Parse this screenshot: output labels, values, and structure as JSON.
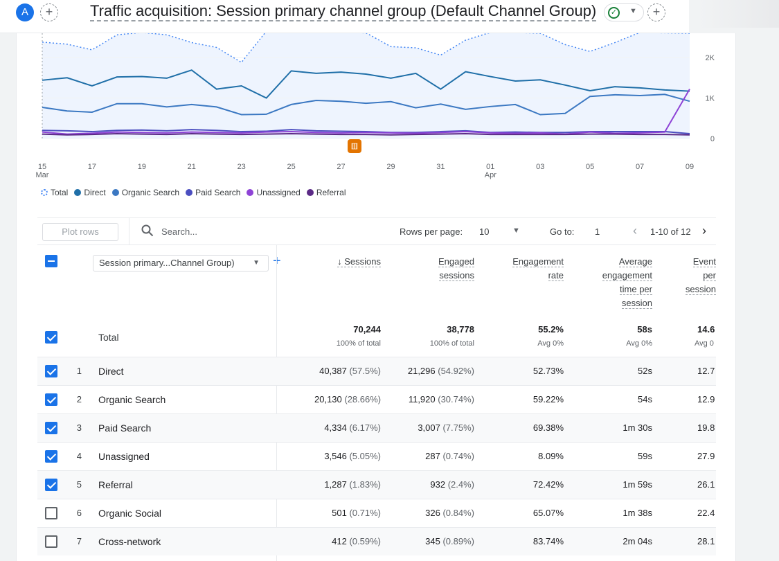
{
  "header": {
    "avatar_letter": "A",
    "title": "Traffic acquisition: Session primary channel group (Default Channel Group)"
  },
  "chart_data": {
    "type": "line",
    "x": [
      "15 Mar",
      "16",
      "17",
      "18",
      "19",
      "20",
      "21",
      "22",
      "23",
      "24",
      "25",
      "26",
      "27",
      "28",
      "29",
      "30",
      "31",
      "01 Apr",
      "02",
      "03",
      "04",
      "05",
      "06",
      "07",
      "08",
      "09",
      "10"
    ],
    "x_tick_labels": [
      {
        "label": "15",
        "sub": "Mar"
      },
      {
        "label": "17"
      },
      {
        "label": "19"
      },
      {
        "label": "21"
      },
      {
        "label": "23"
      },
      {
        "label": "25"
      },
      {
        "label": "27"
      },
      {
        "label": "29"
      },
      {
        "label": "31"
      },
      {
        "label": "01",
        "sub": "Apr"
      },
      {
        "label": "03"
      },
      {
        "label": "05"
      },
      {
        "label": "07"
      },
      {
        "label": "09"
      }
    ],
    "y_ticks": [
      "2K",
      "1K",
      "0"
    ],
    "ylim": [
      0,
      2600
    ],
    "series": [
      {
        "name": "Total",
        "color": "#4285f4",
        "dashed": true,
        "values": [
          2380,
          2330,
          2190,
          2560,
          2620,
          2560,
          2370,
          2250,
          1880,
          2650,
          2620,
          2620,
          2620,
          2610,
          2270,
          2240,
          2060,
          2430,
          2620,
          2620,
          2600,
          2320,
          2150,
          2370,
          2620,
          2610,
          2600
        ]
      },
      {
        "name": "Direct",
        "color": "#1f6fa8",
        "values": [
          1440,
          1500,
          1300,
          1520,
          1530,
          1490,
          1690,
          1220,
          1300,
          1000,
          1670,
          1610,
          1640,
          1590,
          1490,
          1610,
          1220,
          1650,
          1530,
          1420,
          1450,
          1320,
          1180,
          1280,
          1250,
          1200,
          1170
        ]
      },
      {
        "name": "Organic Search",
        "color": "#3b78c2",
        "values": [
          770,
          680,
          650,
          860,
          860,
          780,
          840,
          780,
          590,
          600,
          840,
          940,
          920,
          870,
          910,
          760,
          850,
          720,
          790,
          840,
          590,
          620,
          1040,
          1080,
          1060,
          1090,
          920
        ]
      },
      {
        "name": "Paid Search",
        "color": "#4b4ec0",
        "values": [
          200,
          190,
          170,
          200,
          210,
          190,
          220,
          200,
          170,
          180,
          220,
          190,
          180,
          170,
          150,
          150,
          170,
          190,
          150,
          160,
          150,
          150,
          170,
          170,
          170,
          170,
          120
        ]
      },
      {
        "name": "Unassigned",
        "color": "#8e43d6",
        "values": [
          160,
          110,
          130,
          160,
          150,
          140,
          160,
          150,
          140,
          160,
          170,
          150,
          140,
          150,
          140,
          130,
          150,
          170,
          140,
          130,
          140,
          110,
          160,
          130,
          140,
          160,
          1220
        ]
      },
      {
        "name": "Referral",
        "color": "#5b2a86",
        "values": [
          110,
          90,
          100,
          120,
          110,
          100,
          120,
          110,
          100,
          110,
          120,
          110,
          100,
          100,
          90,
          100,
          110,
          120,
          100,
          100,
          100,
          100,
          110,
          110,
          100,
          100,
          90
        ]
      }
    ]
  },
  "toolbar": {
    "plot_rows": "Plot rows",
    "search_placeholder": "Search...",
    "rows_per_page_label": "Rows per page:",
    "rows_per_page_value": "10",
    "goto_label": "Go to:",
    "goto_value": "1",
    "range": "1-10 of 12"
  },
  "table": {
    "dimension": "Session primary...Channel Group)",
    "columns": [
      {
        "lines": [
          "↓ Sessions"
        ]
      },
      {
        "lines": [
          "Engaged",
          "sessions"
        ]
      },
      {
        "lines": [
          "Engagement",
          "rate"
        ]
      },
      {
        "lines": [
          "Average",
          "engagement",
          "time per",
          "session"
        ]
      },
      {
        "lines": [
          "Event",
          "per",
          "session"
        ]
      }
    ],
    "total": {
      "label": "Total",
      "values": [
        "70,244",
        "38,778",
        "55.2%",
        "58s",
        "14.6"
      ],
      "subs": [
        "100% of total",
        "100% of total",
        "Avg 0%",
        "Avg 0%",
        "Avg 0"
      ]
    },
    "rows": [
      {
        "idx": "1",
        "name": "Direct",
        "checked": true,
        "sessions": "40,387",
        "sessions_pct": "(57.5%)",
        "engaged": "21,296",
        "engaged_pct": "(54.92%)",
        "rate": "52.73%",
        "time": "52s",
        "events": "12.7"
      },
      {
        "idx": "2",
        "name": "Organic Search",
        "checked": true,
        "sessions": "20,130",
        "sessions_pct": "(28.66%)",
        "engaged": "11,920",
        "engaged_pct": "(30.74%)",
        "rate": "59.22%",
        "time": "54s",
        "events": "12.9"
      },
      {
        "idx": "3",
        "name": "Paid Search",
        "checked": true,
        "sessions": "4,334",
        "sessions_pct": "(6.17%)",
        "engaged": "3,007",
        "engaged_pct": "(7.75%)",
        "rate": "69.38%",
        "time": "1m 30s",
        "events": "19.8"
      },
      {
        "idx": "4",
        "name": "Unassigned",
        "checked": true,
        "sessions": "3,546",
        "sessions_pct": "(5.05%)",
        "engaged": "287",
        "engaged_pct": "(0.74%)",
        "rate": "8.09%",
        "time": "59s",
        "events": "27.9"
      },
      {
        "idx": "5",
        "name": "Referral",
        "checked": true,
        "sessions": "1,287",
        "sessions_pct": "(1.83%)",
        "engaged": "932",
        "engaged_pct": "(2.4%)",
        "rate": "72.42%",
        "time": "1m 59s",
        "events": "26.1"
      },
      {
        "idx": "6",
        "name": "Organic Social",
        "checked": false,
        "sessions": "501",
        "sessions_pct": "(0.71%)",
        "engaged": "326",
        "engaged_pct": "(0.84%)",
        "rate": "65.07%",
        "time": "1m 38s",
        "events": "22.4"
      },
      {
        "idx": "7",
        "name": "Cross-network",
        "checked": false,
        "sessions": "412",
        "sessions_pct": "(0.59%)",
        "engaged": "345",
        "engaged_pct": "(0.89%)",
        "rate": "83.74%",
        "time": "2m 04s",
        "events": "28.1"
      }
    ]
  }
}
